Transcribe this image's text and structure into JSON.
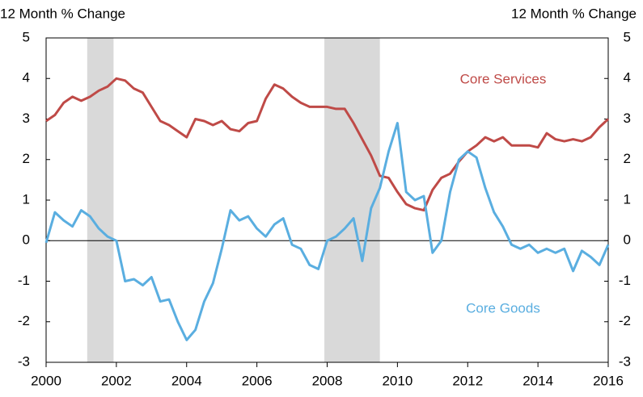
{
  "chart_data": {
    "type": "line",
    "ylabel": "12 Month % Change",
    "y2label": "12 Month % Change",
    "x": [
      2000,
      2000.25,
      2000.5,
      2000.75,
      2001,
      2001.25,
      2001.5,
      2001.75,
      2002,
      2002.25,
      2002.5,
      2002.75,
      2003,
      2003.25,
      2003.5,
      2003.75,
      2004,
      2004.25,
      2004.5,
      2004.75,
      2005,
      2005.25,
      2005.5,
      2005.75,
      2006,
      2006.25,
      2006.5,
      2006.75,
      2007,
      2007.25,
      2007.5,
      2007.75,
      2008,
      2008.25,
      2008.5,
      2008.75,
      2009,
      2009.25,
      2009.5,
      2009.75,
      2010,
      2010.25,
      2010.5,
      2010.75,
      2011,
      2011.25,
      2011.5,
      2011.75,
      2012,
      2012.25,
      2012.5,
      2012.75,
      2013,
      2013.25,
      2013.5,
      2013.75,
      2014,
      2014.25,
      2014.5,
      2014.75,
      2015,
      2015.25,
      2015.5,
      2015.75,
      2016
    ],
    "series": [
      {
        "name": "Core Services",
        "color": "#bf4a47",
        "values": [
          2.95,
          3.1,
          3.4,
          3.55,
          3.45,
          3.55,
          3.7,
          3.8,
          4.0,
          3.95,
          3.75,
          3.65,
          3.3,
          2.95,
          2.85,
          2.7,
          2.55,
          3.0,
          2.95,
          2.85,
          2.95,
          2.75,
          2.7,
          2.9,
          2.95,
          3.5,
          3.85,
          3.75,
          3.55,
          3.4,
          3.3,
          3.3,
          3.3,
          3.25,
          3.25,
          2.9,
          2.5,
          2.1,
          1.6,
          1.55,
          1.2,
          0.9,
          0.8,
          0.75,
          1.25,
          1.55,
          1.65,
          1.95,
          2.2,
          2.35,
          2.55,
          2.45,
          2.55,
          2.35,
          2.35,
          2.35,
          2.3,
          2.65,
          2.5,
          2.45,
          2.5,
          2.45,
          2.55,
          2.8,
          3.0
        ]
      },
      {
        "name": "Core Goods",
        "color": "#5aaee0",
        "values": [
          -0.05,
          0.7,
          0.5,
          0.35,
          0.75,
          0.6,
          0.3,
          0.1,
          0.0,
          -1.0,
          -0.95,
          -1.1,
          -0.9,
          -1.5,
          -1.45,
          -2.0,
          -2.45,
          -2.2,
          -1.5,
          -1.05,
          -0.2,
          0.75,
          0.5,
          0.6,
          0.3,
          0.1,
          0.4,
          0.55,
          -0.1,
          -0.2,
          -0.6,
          -0.7,
          0.0,
          0.1,
          0.3,
          0.55,
          -0.5,
          0.8,
          1.3,
          2.2,
          2.9,
          1.2,
          1.0,
          1.1,
          -0.3,
          0.0,
          1.2,
          2.0,
          2.2,
          2.05,
          1.3,
          0.7,
          0.35,
          -0.1,
          -0.2,
          -0.1,
          -0.3,
          -0.2,
          -0.3,
          -0.2,
          -0.75,
          -0.25,
          -0.4,
          -0.6,
          -0.1
        ]
      }
    ],
    "shaded_ranges": [
      [
        2001.17,
        2001.92
      ],
      [
        2007.92,
        2009.5
      ]
    ],
    "shade_color": "#d9d9d9",
    "xlim": [
      2000,
      2016
    ],
    "xticks": [
      2000,
      2002,
      2004,
      2006,
      2008,
      2010,
      2012,
      2014,
      2016
    ],
    "ylim": [
      -3,
      5
    ],
    "yticks": [
      -3,
      -2,
      -1,
      0,
      1,
      2,
      3,
      4,
      5
    ],
    "y2lim": [
      -3,
      5
    ],
    "y2ticks": [
      -3,
      -2,
      -1,
      0,
      1,
      2,
      3,
      4,
      5
    ]
  }
}
